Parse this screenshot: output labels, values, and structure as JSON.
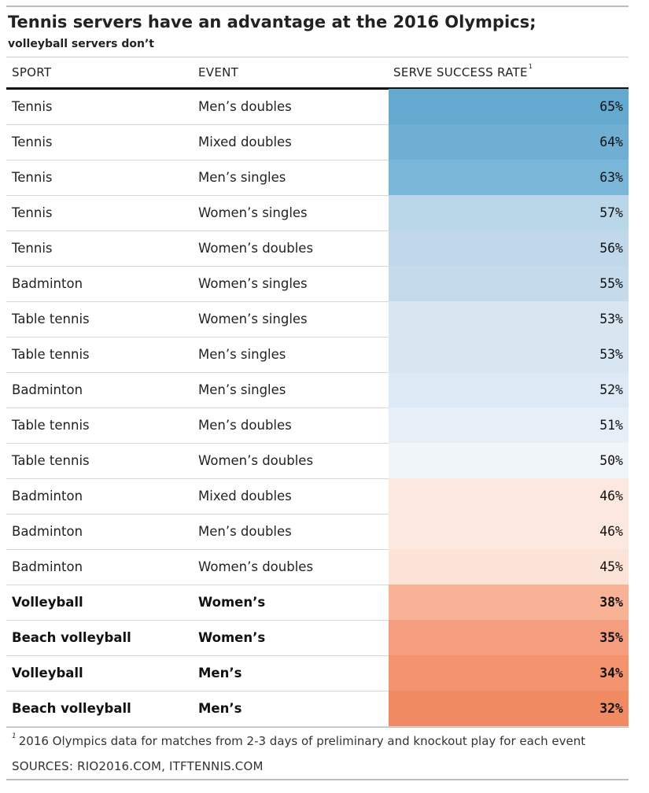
{
  "chart_data": {
    "type": "table",
    "title": "Tennis servers have an advantage at the 2016 Olympics;",
    "subtitle": "volleyball servers don’t",
    "columns": [
      "SPORT",
      "EVENT",
      "SERVE SUCCESS RATE"
    ],
    "column_footnote_mark": "1",
    "rows": [
      {
        "sport": "Tennis",
        "event": "Men’s doubles",
        "rate": "65%",
        "value": 65,
        "color": "#64a9d0",
        "bold": false
      },
      {
        "sport": "Tennis",
        "event": "Mixed doubles",
        "rate": "64%",
        "value": 64,
        "color": "#6fafd4",
        "bold": false
      },
      {
        "sport": "Tennis",
        "event": "Men’s singles",
        "rate": "63%",
        "value": 63,
        "color": "#7ab6d8",
        "bold": false
      },
      {
        "sport": "Tennis",
        "event": "Women’s singles",
        "rate": "57%",
        "value": 57,
        "color": "#bad6e9",
        "bold": false
      },
      {
        "sport": "Tennis",
        "event": "Women’s doubles",
        "rate": "56%",
        "value": 56,
        "color": "#c0d8ea",
        "bold": false
      },
      {
        "sport": "Badminton",
        "event": "Women’s singles",
        "rate": "55%",
        "value": 55,
        "color": "#c5dbec",
        "bold": false
      },
      {
        "sport": "Table tennis",
        "event": "Women’s singles",
        "rate": "53%",
        "value": 53,
        "color": "#d8e6f2",
        "bold": false
      },
      {
        "sport": "Table tennis",
        "event": "Men’s singles",
        "rate": "53%",
        "value": 53,
        "color": "#d8e6f2",
        "bold": false
      },
      {
        "sport": "Badminton",
        "event": "Men’s singles",
        "rate": "52%",
        "value": 52,
        "color": "#dde9f4",
        "bold": false
      },
      {
        "sport": "Table tennis",
        "event": "Men’s doubles",
        "rate": "51%",
        "value": 51,
        "color": "#e6eff7",
        "bold": false
      },
      {
        "sport": "Table tennis",
        "event": "Women’s doubles",
        "rate": "50%",
        "value": 50,
        "color": "#f0f5fa",
        "bold": false
      },
      {
        "sport": "Badminton",
        "event": "Mixed doubles",
        "rate": "46%",
        "value": 46,
        "color": "#fde8df",
        "bold": false
      },
      {
        "sport": "Badminton",
        "event": "Men’s doubles",
        "rate": "46%",
        "value": 46,
        "color": "#fde8df",
        "bold": false
      },
      {
        "sport": "Badminton",
        "event": "Women’s doubles",
        "rate": "45%",
        "value": 45,
        "color": "#fce3d8",
        "bold": false
      },
      {
        "sport": "Volleyball",
        "event": "Women’s",
        "rate": "38%",
        "value": 38,
        "color": "#f8b397",
        "bold": true
      },
      {
        "sport": "Beach volleyball",
        "event": "Women’s",
        "rate": "35%",
        "value": 35,
        "color": "#f49d7f",
        "bold": true
      },
      {
        "sport": "Volleyball",
        "event": "Men’s",
        "rate": "34%",
        "value": 34,
        "color": "#f3946f",
        "bold": true
      },
      {
        "sport": "Beach volleyball",
        "event": "Men’s",
        "rate": "32%",
        "value": 32,
        "color": "#f08a62",
        "bold": true
      }
    ]
  },
  "footnote": {
    "mark": "1",
    "text": "2016 Olympics data for matches from 2-3 days of preliminary and knockout play for each event"
  },
  "sources": "SOURCES: RIO2016.COM, ITFTENNIS.COM"
}
